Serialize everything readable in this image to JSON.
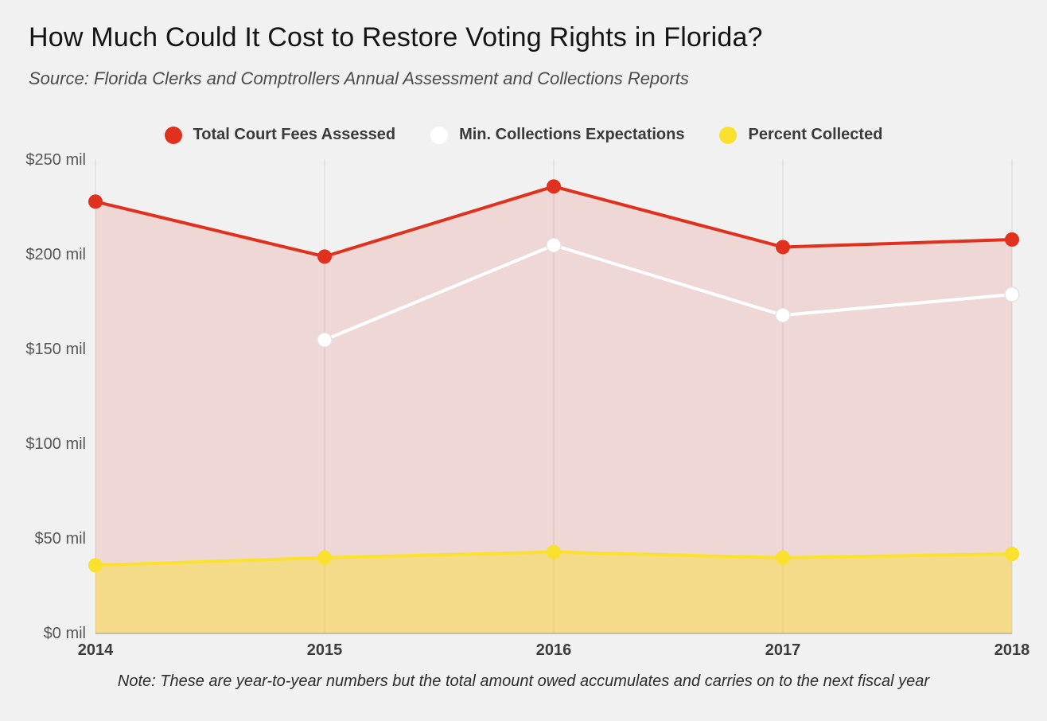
{
  "page": {
    "title": "How Much Could It Cost to Restore Voting Rights in Florida?",
    "source": "Source: Florida Clerks and Comptrollers Annual Assessment and Collections Reports",
    "note": "Note: These are year-to-year numbers but the total amount owed accumulates and carries on to the next fiscal year"
  },
  "chart_data": {
    "type": "line",
    "title": "How Much Could It Cost to Restore Voting Rights in Florida?",
    "x": [
      "2014",
      "2015",
      "2016",
      "2017",
      "2018"
    ],
    "series": [
      {
        "name": "Total Court Fees Assessed",
        "color": "#e0301e",
        "values": [
          228,
          199,
          236,
          204,
          208
        ],
        "area_opacity": 0.13
      },
      {
        "name": "Min. Collections Expectations",
        "color": "#ffffff",
        "dot_stroke": "#e4e4e4",
        "values": [
          null,
          155,
          205,
          168,
          179
        ]
      },
      {
        "name": "Percent Collected",
        "color": "#fae12e",
        "values": [
          36,
          40,
          43,
          40,
          42
        ],
        "area_opacity": 0.45
      }
    ],
    "ylim": [
      0,
      250
    ],
    "yticks": [
      0,
      50,
      100,
      150,
      200,
      250
    ],
    "ytick_labels": [
      "$0 mil",
      "$50 mil",
      "$100 mil",
      "$150 mil",
      "$200 mil",
      "$250 mil"
    ],
    "grid": "vertical-only",
    "legend_position": "top",
    "units": "millions USD (yellow series = percent collected)"
  }
}
